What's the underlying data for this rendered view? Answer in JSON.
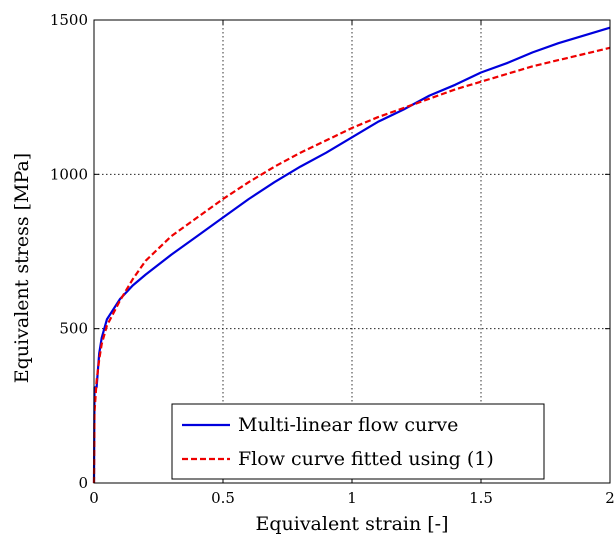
{
  "chart_data": {
    "type": "line",
    "title": "",
    "xlabel": "Equivalent strain [-]",
    "ylabel": "Equivalent stress [MPa]",
    "xlim": [
      0,
      2
    ],
    "ylim": [
      0,
      1500
    ],
    "xticks": [
      0,
      0.5,
      1,
      1.5,
      2
    ],
    "xtick_labels": [
      "0",
      "0.5",
      "1",
      "1.5",
      "2"
    ],
    "yticks": [
      0,
      500,
      1000,
      1500
    ],
    "ytick_labels": [
      "0",
      "500",
      "1000",
      "1500"
    ],
    "grid": true,
    "legend_position": "bottom-center",
    "series": [
      {
        "name": "Multi-linear flow curve",
        "color": "#0000dd",
        "style": "solid",
        "x": [
          0,
          0.002,
          0.01,
          0.02,
          0.03,
          0.05,
          0.1,
          0.15,
          0.2,
          0.3,
          0.4,
          0.5,
          0.6,
          0.7,
          0.8,
          0.9,
          1.0,
          1.1,
          1.2,
          1.3,
          1.4,
          1.5,
          1.6,
          1.7,
          1.8,
          1.9,
          2.0
        ],
        "y": [
          0,
          310,
          310,
          420,
          470,
          530,
          595,
          640,
          675,
          740,
          800,
          860,
          920,
          975,
          1025,
          1070,
          1120,
          1170,
          1210,
          1255,
          1290,
          1330,
          1360,
          1395,
          1425,
          1450,
          1475
        ]
      },
      {
        "name": "Flow curve fitted using (1)",
        "color": "#ee0000",
        "style": "dashed",
        "x": [
          0,
          0.002,
          0.01,
          0.02,
          0.03,
          0.05,
          0.1,
          0.15,
          0.2,
          0.3,
          0.4,
          0.5,
          0.6,
          0.7,
          0.8,
          0.9,
          1.0,
          1.1,
          1.2,
          1.3,
          1.4,
          1.5,
          1.6,
          1.7,
          1.8,
          1.9,
          2.0
        ],
        "y": [
          0,
          230,
          330,
          400,
          450,
          510,
          590,
          660,
          720,
          800,
          860,
          920,
          975,
          1025,
          1070,
          1110,
          1150,
          1185,
          1215,
          1245,
          1275,
          1300,
          1325,
          1350,
          1370,
          1390,
          1410
        ]
      }
    ]
  }
}
